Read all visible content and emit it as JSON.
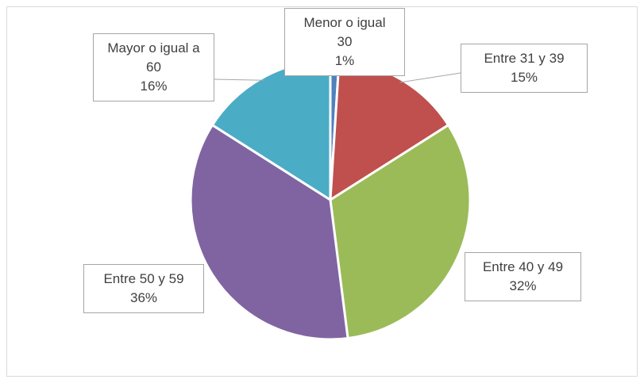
{
  "chart_data": {
    "type": "pie",
    "categories": [
      "Menor o igual 30",
      "Entre 31 y 39",
      "Entre 40 y 49",
      "Entre 50 y 59",
      "Mayor o igual a 60"
    ],
    "values": [
      1,
      15,
      32,
      36,
      16
    ],
    "value_labels": [
      "1%",
      "15%",
      "32%",
      "36%",
      "16%"
    ],
    "colors": [
      "#4f81bd",
      "#c0504d",
      "#9bbb59",
      "#8064a2",
      "#4bacc6"
    ]
  }
}
